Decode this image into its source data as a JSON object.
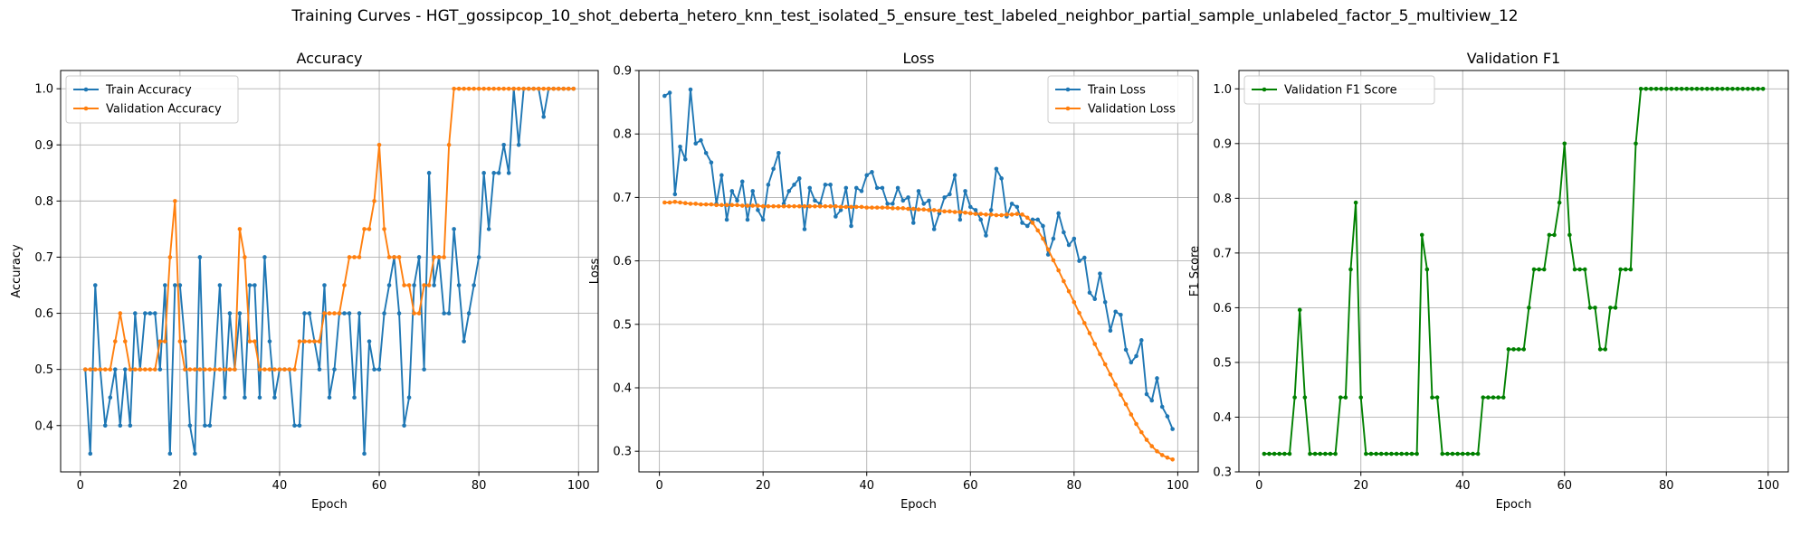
{
  "suptitle": "Training Curves - HGT_gossipcop_10_shot_deberta_hetero_knn_test_isolated_5_ensure_test_labeled_neighbor_partial_sample_unlabeled_factor_5_multiview_12",
  "colors": {
    "blue": "#1f77b4",
    "orange": "#ff7f0e",
    "green": "#008000",
    "grid": "#b0b0b0"
  },
  "chart_data": [
    {
      "type": "line",
      "title": "Accuracy",
      "xlabel": "Epoch",
      "ylabel": "Accuracy",
      "xlim": [
        -3.95,
        103.95
      ],
      "ylim": [
        0.3175,
        1.0325
      ],
      "xticks": [
        0,
        20,
        40,
        60,
        80,
        100
      ],
      "yticks": [
        0.4,
        0.5,
        0.6,
        0.7,
        0.8,
        0.9,
        1.0
      ],
      "ytick_labels": [
        "0.4",
        "0.5",
        "0.6",
        "0.7",
        "0.8",
        "0.9",
        "1.0"
      ],
      "grid": true,
      "legend_position": "top-left",
      "series": [
        {
          "name": "Train Accuracy",
          "color": "#1f77b4",
          "x": [
            1,
            2,
            3,
            4,
            5,
            6,
            7,
            8,
            9,
            10,
            11,
            12,
            13,
            14,
            15,
            16,
            17,
            18,
            19,
            20,
            21,
            22,
            23,
            24,
            25,
            26,
            27,
            28,
            29,
            30,
            31,
            32,
            33,
            34,
            35,
            36,
            37,
            38,
            39,
            40,
            41,
            42,
            43,
            44,
            45,
            46,
            47,
            48,
            49,
            50,
            51,
            52,
            53,
            54,
            55,
            56,
            57,
            58,
            59,
            60,
            61,
            62,
            63,
            64,
            65,
            66,
            67,
            68,
            69,
            70,
            71,
            72,
            73,
            74,
            75,
            76,
            77,
            78,
            79,
            80,
            81,
            82,
            83,
            84,
            85,
            86,
            87,
            88,
            89,
            90,
            91,
            92,
            93,
            94,
            95,
            96,
            97,
            98,
            99
          ],
          "y": [
            0.5,
            0.35,
            0.65,
            0.5,
            0.4,
            0.45,
            0.5,
            0.4,
            0.5,
            0.4,
            0.6,
            0.5,
            0.6,
            0.6,
            0.6,
            0.5,
            0.65,
            0.35,
            0.65,
            0.65,
            0.55,
            0.4,
            0.35,
            0.7,
            0.4,
            0.4,
            0.5,
            0.65,
            0.45,
            0.6,
            0.5,
            0.6,
            0.45,
            0.65,
            0.65,
            0.45,
            0.7,
            0.55,
            0.45,
            0.5,
            0.5,
            0.5,
            0.4,
            0.4,
            0.6,
            0.6,
            0.55,
            0.5,
            0.65,
            0.45,
            0.5,
            0.6,
            0.6,
            0.6,
            0.45,
            0.6,
            0.35,
            0.55,
            0.5,
            0.5,
            0.6,
            0.65,
            0.7,
            0.6,
            0.4,
            0.45,
            0.65,
            0.7,
            0.5,
            0.85,
            0.65,
            0.7,
            0.6,
            0.6,
            0.75,
            0.65,
            0.55,
            0.6,
            0.65,
            0.7,
            0.85,
            0.75,
            0.85,
            0.85,
            0.9,
            0.85,
            1.0,
            0.9,
            1.0,
            1.0,
            1.0,
            1.0,
            0.95,
            1.0,
            1.0,
            1.0,
            1.0,
            1.0,
            1.0
          ]
        },
        {
          "name": "Validation Accuracy",
          "color": "#ff7f0e",
          "x": [
            1,
            2,
            3,
            4,
            5,
            6,
            7,
            8,
            9,
            10,
            11,
            12,
            13,
            14,
            15,
            16,
            17,
            18,
            19,
            20,
            21,
            22,
            23,
            24,
            25,
            26,
            27,
            28,
            29,
            30,
            31,
            32,
            33,
            34,
            35,
            36,
            37,
            38,
            39,
            40,
            41,
            42,
            43,
            44,
            45,
            46,
            47,
            48,
            49,
            50,
            51,
            52,
            53,
            54,
            55,
            56,
            57,
            58,
            59,
            60,
            61,
            62,
            63,
            64,
            65,
            66,
            67,
            68,
            69,
            70,
            71,
            72,
            73,
            74,
            75,
            76,
            77,
            78,
            79,
            80,
            81,
            82,
            83,
            84,
            85,
            86,
            87,
            88,
            89,
            90,
            91,
            92,
            93,
            94,
            95,
            96,
            97,
            98,
            99
          ],
          "y": [
            0.5,
            0.5,
            0.5,
            0.5,
            0.5,
            0.5,
            0.55,
            0.6,
            0.55,
            0.5,
            0.5,
            0.5,
            0.5,
            0.5,
            0.5,
            0.55,
            0.55,
            0.7,
            0.8,
            0.55,
            0.5,
            0.5,
            0.5,
            0.5,
            0.5,
            0.5,
            0.5,
            0.5,
            0.5,
            0.5,
            0.5,
            0.75,
            0.7,
            0.55,
            0.55,
            0.5,
            0.5,
            0.5,
            0.5,
            0.5,
            0.5,
            0.5,
            0.5,
            0.55,
            0.55,
            0.55,
            0.55,
            0.55,
            0.6,
            0.6,
            0.6,
            0.6,
            0.65,
            0.7,
            0.7,
            0.7,
            0.75,
            0.75,
            0.8,
            0.9,
            0.75,
            0.7,
            0.7,
            0.7,
            0.65,
            0.65,
            0.6,
            0.6,
            0.65,
            0.65,
            0.7,
            0.7,
            0.7,
            0.9,
            1.0,
            1.0,
            1.0,
            1.0,
            1.0,
            1.0,
            1.0,
            1.0,
            1.0,
            1.0,
            1.0,
            1.0,
            1.0,
            1.0,
            1.0,
            1.0,
            1.0,
            1.0,
            1.0,
            1.0,
            1.0,
            1.0,
            1.0,
            1.0,
            1.0
          ]
        }
      ]
    },
    {
      "type": "line",
      "title": "Loss",
      "xlabel": "Epoch",
      "ylabel": "Loss",
      "xlim": [
        -3.95,
        103.95
      ],
      "ylim": [
        0.2675,
        0.9
      ],
      "xticks": [
        0,
        20,
        40,
        60,
        80,
        100
      ],
      "yticks": [
        0.3,
        0.4,
        0.5,
        0.6,
        0.7,
        0.8,
        0.9
      ],
      "ytick_labels": [
        "0.3",
        "0.4",
        "0.5",
        "0.6",
        "0.7",
        "0.8",
        "0.9"
      ],
      "grid": true,
      "legend_position": "top-right",
      "series": [
        {
          "name": "Train Loss",
          "color": "#1f77b4",
          "x": [
            1,
            2,
            3,
            4,
            5,
            6,
            7,
            8,
            9,
            10,
            11,
            12,
            13,
            14,
            15,
            16,
            17,
            18,
            19,
            20,
            21,
            22,
            23,
            24,
            25,
            26,
            27,
            28,
            29,
            30,
            31,
            32,
            33,
            34,
            35,
            36,
            37,
            38,
            39,
            40,
            41,
            42,
            43,
            44,
            45,
            46,
            47,
            48,
            49,
            50,
            51,
            52,
            53,
            54,
            55,
            56,
            57,
            58,
            59,
            60,
            61,
            62,
            63,
            64,
            65,
            66,
            67,
            68,
            69,
            70,
            71,
            72,
            73,
            74,
            75,
            76,
            77,
            78,
            79,
            80,
            81,
            82,
            83,
            84,
            85,
            86,
            87,
            88,
            89,
            90,
            91,
            92,
            93,
            94,
            95,
            96,
            97,
            98,
            99
          ],
          "y": [
            0.86,
            0.865,
            0.705,
            0.78,
            0.76,
            0.87,
            0.785,
            0.79,
            0.77,
            0.755,
            0.69,
            0.735,
            0.665,
            0.71,
            0.695,
            0.725,
            0.665,
            0.71,
            0.68,
            0.665,
            0.72,
            0.745,
            0.77,
            0.69,
            0.71,
            0.72,
            0.73,
            0.65,
            0.715,
            0.695,
            0.69,
            0.72,
            0.72,
            0.67,
            0.68,
            0.715,
            0.655,
            0.715,
            0.71,
            0.735,
            0.74,
            0.715,
            0.715,
            0.69,
            0.69,
            0.715,
            0.695,
            0.7,
            0.66,
            0.71,
            0.69,
            0.695,
            0.65,
            0.675,
            0.7,
            0.705,
            0.735,
            0.665,
            0.71,
            0.685,
            0.68,
            0.665,
            0.64,
            0.68,
            0.745,
            0.73,
            0.67,
            0.69,
            0.685,
            0.66,
            0.655,
            0.665,
            0.665,
            0.655,
            0.61,
            0.635,
            0.675,
            0.645,
            0.625,
            0.635,
            0.6,
            0.605,
            0.55,
            0.54,
            0.58,
            0.535,
            0.49,
            0.52,
            0.515,
            0.46,
            0.44,
            0.45,
            0.475,
            0.39,
            0.38,
            0.415,
            0.37,
            0.355,
            0.335
          ]
        },
        {
          "name": "Validation Loss",
          "color": "#ff7f0e",
          "x": [
            1,
            2,
            3,
            4,
            5,
            6,
            7,
            8,
            9,
            10,
            11,
            12,
            13,
            14,
            15,
            16,
            17,
            18,
            19,
            20,
            21,
            22,
            23,
            24,
            25,
            26,
            27,
            28,
            29,
            30,
            31,
            32,
            33,
            34,
            35,
            36,
            37,
            38,
            39,
            40,
            41,
            42,
            43,
            44,
            45,
            46,
            47,
            48,
            49,
            50,
            51,
            52,
            53,
            54,
            55,
            56,
            57,
            58,
            59,
            60,
            61,
            62,
            63,
            64,
            65,
            66,
            67,
            68,
            69,
            70,
            71,
            72,
            73,
            74,
            75,
            76,
            77,
            78,
            79,
            80,
            81,
            82,
            83,
            84,
            85,
            86,
            87,
            88,
            89,
            90,
            91,
            92,
            93,
            94,
            95,
            96,
            97,
            98,
            99
          ],
          "y": [
            0.692,
            0.692,
            0.693,
            0.692,
            0.691,
            0.69,
            0.69,
            0.689,
            0.689,
            0.689,
            0.688,
            0.688,
            0.688,
            0.688,
            0.688,
            0.687,
            0.687,
            0.687,
            0.687,
            0.686,
            0.686,
            0.686,
            0.686,
            0.686,
            0.686,
            0.686,
            0.686,
            0.686,
            0.686,
            0.686,
            0.686,
            0.686,
            0.686,
            0.686,
            0.685,
            0.685,
            0.685,
            0.685,
            0.685,
            0.684,
            0.684,
            0.684,
            0.684,
            0.684,
            0.683,
            0.683,
            0.683,
            0.682,
            0.682,
            0.681,
            0.681,
            0.68,
            0.68,
            0.679,
            0.678,
            0.678,
            0.677,
            0.677,
            0.676,
            0.675,
            0.674,
            0.674,
            0.673,
            0.673,
            0.672,
            0.672,
            0.673,
            0.673,
            0.674,
            0.673,
            0.668,
            0.66,
            0.648,
            0.635,
            0.618,
            0.601,
            0.585,
            0.568,
            0.552,
            0.535,
            0.518,
            0.502,
            0.486,
            0.469,
            0.453,
            0.437,
            0.421,
            0.405,
            0.389,
            0.374,
            0.358,
            0.343,
            0.33,
            0.318,
            0.308,
            0.3,
            0.294,
            0.29,
            0.287
          ]
        }
      ]
    },
    {
      "type": "line",
      "title": "Validation F1",
      "xlabel": "Epoch",
      "ylabel": "F1 Score",
      "xlim": [
        -3.95,
        103.95
      ],
      "ylim": [
        0.3,
        1.0335
      ],
      "xticks": [
        0,
        20,
        40,
        60,
        80,
        100
      ],
      "yticks": [
        0.3,
        0.4,
        0.5,
        0.6,
        0.7,
        0.8,
        0.9,
        1.0
      ],
      "ytick_labels": [
        "0.3",
        "0.4",
        "0.5",
        "0.6",
        "0.7",
        "0.8",
        "0.9",
        "1.0"
      ],
      "grid": true,
      "legend_position": "top-left",
      "series": [
        {
          "name": "Validation F1 Score",
          "color": "#008000",
          "x": [
            1,
            2,
            3,
            4,
            5,
            6,
            7,
            8,
            9,
            10,
            11,
            12,
            13,
            14,
            15,
            16,
            17,
            18,
            19,
            20,
            21,
            22,
            23,
            24,
            25,
            26,
            27,
            28,
            29,
            30,
            31,
            32,
            33,
            34,
            35,
            36,
            37,
            38,
            39,
            40,
            41,
            42,
            43,
            44,
            45,
            46,
            47,
            48,
            49,
            50,
            51,
            52,
            53,
            54,
            55,
            56,
            57,
            58,
            59,
            60,
            61,
            62,
            63,
            64,
            65,
            66,
            67,
            68,
            69,
            70,
            71,
            72,
            73,
            74,
            75,
            76,
            77,
            78,
            79,
            80,
            81,
            82,
            83,
            84,
            85,
            86,
            87,
            88,
            89,
            90,
            91,
            92,
            93,
            94,
            95,
            96,
            97,
            98,
            99
          ],
          "y": [
            0.333,
            0.333,
            0.333,
            0.333,
            0.333,
            0.333,
            0.436,
            0.596,
            0.436,
            0.333,
            0.333,
            0.333,
            0.333,
            0.333,
            0.333,
            0.436,
            0.436,
            0.67,
            0.792,
            0.436,
            0.333,
            0.333,
            0.333,
            0.333,
            0.333,
            0.333,
            0.333,
            0.333,
            0.333,
            0.333,
            0.333,
            0.733,
            0.67,
            0.436,
            0.436,
            0.333,
            0.333,
            0.333,
            0.333,
            0.333,
            0.333,
            0.333,
            0.333,
            0.436,
            0.436,
            0.436,
            0.436,
            0.436,
            0.524,
            0.524,
            0.524,
            0.524,
            0.6,
            0.67,
            0.67,
            0.67,
            0.733,
            0.733,
            0.792,
            0.9,
            0.733,
            0.67,
            0.67,
            0.67,
            0.6,
            0.6,
            0.524,
            0.524,
            0.6,
            0.6,
            0.67,
            0.67,
            0.67,
            0.9,
            1.0,
            1.0,
            1.0,
            1.0,
            1.0,
            1.0,
            1.0,
            1.0,
            1.0,
            1.0,
            1.0,
            1.0,
            1.0,
            1.0,
            1.0,
            1.0,
            1.0,
            1.0,
            1.0,
            1.0,
            1.0,
            1.0,
            1.0,
            1.0,
            1.0
          ]
        }
      ]
    }
  ]
}
